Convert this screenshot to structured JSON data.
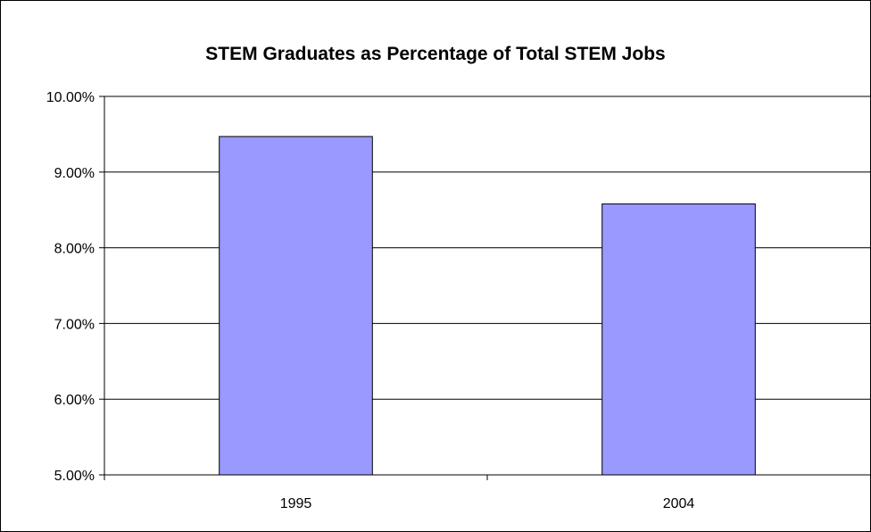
{
  "chart_data": {
    "type": "bar",
    "title": "STEM Graduates as Percentage of Total STEM Jobs",
    "categories": [
      "1995",
      "2004"
    ],
    "values": [
      9.47,
      8.58
    ],
    "xlabel": "",
    "ylabel": "",
    "ylim": [
      5,
      10
    ],
    "yticks": [
      "5.00%",
      "6.00%",
      "7.00%",
      "8.00%",
      "9.00%",
      "10.00%"
    ],
    "grid": true,
    "legend": "none",
    "colors": {
      "bar_fill": "#9999ff",
      "bar_stroke": "#000000",
      "grid": "#000000"
    }
  }
}
